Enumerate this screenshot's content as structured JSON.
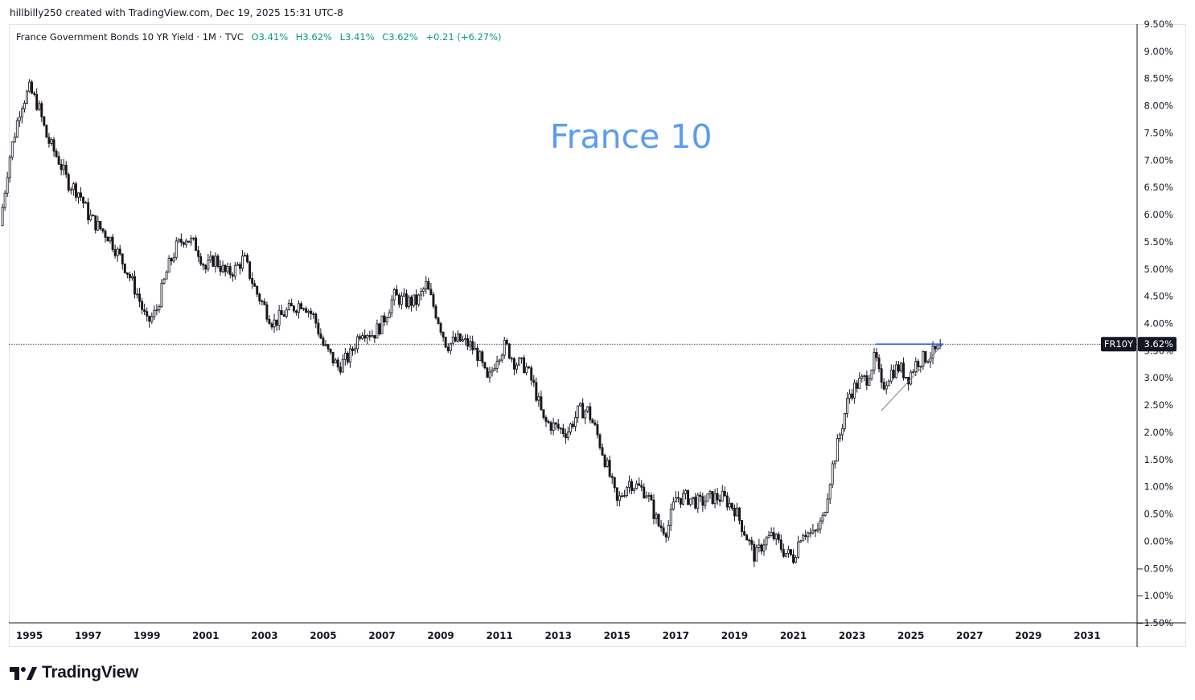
{
  "header": {
    "credit": "hillbilly250 created with TradingView.com, Dec 19, 2025 15:31 UTC-8"
  },
  "legend": {
    "symbol": "France Government Bonds 10 YR Yield · 1M · TVC",
    "open": "O3.41%",
    "high": "H3.62%",
    "low": "L3.41%",
    "close": "C3.62%",
    "change": "+0.21 (+6.27%)"
  },
  "annotation": {
    "text": "France 10",
    "color": "#5b9cf0"
  },
  "price_tag": {
    "ticker": "FR10Y",
    "value": "3.62%"
  },
  "brand": {
    "name": "TradingView"
  },
  "colors": {
    "up": "#ffffff",
    "down": "#2e0e0e",
    "wick": "#131722",
    "trendline": "#2962ff",
    "text": "#131722",
    "grid": "#e0e3eb"
  },
  "chart_data": {
    "type": "candlestick",
    "title": "France Government Bonds 10 YR Yield",
    "interval": "1M",
    "source": "TVC",
    "x_ticks": [
      "1995",
      "1997",
      "1999",
      "2001",
      "2003",
      "2005",
      "2007",
      "2009",
      "2011",
      "2013",
      "2015",
      "2017",
      "2019",
      "2021",
      "2023",
      "2025",
      "2027",
      "2029",
      "2031"
    ],
    "y_ticks": [
      "9.50%",
      "9.00%",
      "8.50%",
      "8.00%",
      "7.50%",
      "7.00%",
      "6.50%",
      "6.00%",
      "5.50%",
      "5.00%",
      "4.50%",
      "4.00%",
      "3.50%",
      "3.00%",
      "2.50%",
      "2.00%",
      "1.50%",
      "1.00%",
      "0.50%",
      "0.00%",
      "−0.50%",
      "−1.00%",
      "−1.50%"
    ],
    "ylim": [
      -1.5,
      9.5
    ],
    "xlim": [
      1994.3,
      2032.7
    ],
    "last_close": 3.62,
    "price_path": [
      [
        1994.0,
        5.8
      ],
      [
        1994.3,
        7.0
      ],
      [
        1994.7,
        8.0
      ],
      [
        1995.0,
        8.3
      ],
      [
        1995.3,
        8.0
      ],
      [
        1995.6,
        7.4
      ],
      [
        1996.0,
        7.0
      ],
      [
        1996.3,
        6.6
      ],
      [
        1996.7,
        6.4
      ],
      [
        1997.0,
        6.0
      ],
      [
        1997.3,
        5.8
      ],
      [
        1997.7,
        5.6
      ],
      [
        1998.0,
        5.3
      ],
      [
        1998.3,
        5.0
      ],
      [
        1998.7,
        4.5
      ],
      [
        1999.0,
        4.0
      ],
      [
        1999.3,
        4.2
      ],
      [
        1999.7,
        5.0
      ],
      [
        2000.0,
        5.4
      ],
      [
        2000.3,
        5.6
      ],
      [
        2000.7,
        5.4
      ],
      [
        2001.0,
        5.0
      ],
      [
        2001.3,
        5.2
      ],
      [
        2001.7,
        4.9
      ],
      [
        2002.0,
        5.0
      ],
      [
        2002.3,
        5.2
      ],
      [
        2002.7,
        4.6
      ],
      [
        2003.0,
        4.3
      ],
      [
        2003.3,
        4.0
      ],
      [
        2003.7,
        4.2
      ],
      [
        2004.0,
        4.3
      ],
      [
        2004.3,
        4.4
      ],
      [
        2004.7,
        4.1
      ],
      [
        2005.0,
        3.6
      ],
      [
        2005.5,
        3.2
      ],
      [
        2005.9,
        3.4
      ],
      [
        2006.3,
        3.9
      ],
      [
        2006.7,
        3.8
      ],
      [
        2007.0,
        4.0
      ],
      [
        2007.4,
        4.5
      ],
      [
        2007.8,
        4.4
      ],
      [
        2008.2,
        4.4
      ],
      [
        2008.5,
        4.7
      ],
      [
        2008.9,
        4.1
      ],
      [
        2009.2,
        3.6
      ],
      [
        2009.6,
        3.7
      ],
      [
        2010.0,
        3.6
      ],
      [
        2010.3,
        3.4
      ],
      [
        2010.6,
        2.9
      ],
      [
        2010.9,
        3.4
      ],
      [
        2011.2,
        3.6
      ],
      [
        2011.5,
        3.3
      ],
      [
        2011.9,
        3.2
      ],
      [
        2012.2,
        2.8
      ],
      [
        2012.5,
        2.2
      ],
      [
        2012.9,
        2.1
      ],
      [
        2013.3,
        2.0
      ],
      [
        2013.7,
        2.4
      ],
      [
        2014.0,
        2.4
      ],
      [
        2014.3,
        2.0
      ],
      [
        2014.7,
        1.3
      ],
      [
        2015.0,
        0.7
      ],
      [
        2015.4,
        1.1
      ],
      [
        2015.7,
        1.0
      ],
      [
        2016.0,
        0.9
      ],
      [
        2016.4,
        0.3
      ],
      [
        2016.7,
        0.2
      ],
      [
        2017.0,
        0.8
      ],
      [
        2017.4,
        0.8
      ],
      [
        2017.8,
        0.7
      ],
      [
        2018.2,
        0.8
      ],
      [
        2018.6,
        0.8
      ],
      [
        2019.0,
        0.6
      ],
      [
        2019.4,
        0.1
      ],
      [
        2019.7,
        -0.3
      ],
      [
        2020.0,
        0.0
      ],
      [
        2020.3,
        0.1
      ],
      [
        2020.7,
        -0.2
      ],
      [
        2021.0,
        -0.3
      ],
      [
        2021.3,
        0.2
      ],
      [
        2021.7,
        0.1
      ],
      [
        2022.0,
        0.4
      ],
      [
        2022.3,
        1.3
      ],
      [
        2022.6,
        2.0
      ],
      [
        2022.9,
        2.7
      ],
      [
        2023.2,
        2.9
      ],
      [
        2023.5,
        3.0
      ],
      [
        2023.8,
        3.4
      ],
      [
        2024.0,
        2.8
      ],
      [
        2024.3,
        3.1
      ],
      [
        2024.6,
        3.2
      ],
      [
        2024.9,
        3.0
      ],
      [
        2025.2,
        3.3
      ],
      [
        2025.6,
        3.4
      ],
      [
        2025.9,
        3.5
      ],
      [
        2026.0,
        3.62
      ]
    ],
    "trendlines": [
      {
        "type": "horizontal",
        "x": [
          2023.8,
          2026.1
        ],
        "y": 3.62
      },
      {
        "type": "rising",
        "x": [
          2024.0,
          2026.1
        ],
        "y": [
          2.4,
          3.62
        ]
      }
    ]
  }
}
